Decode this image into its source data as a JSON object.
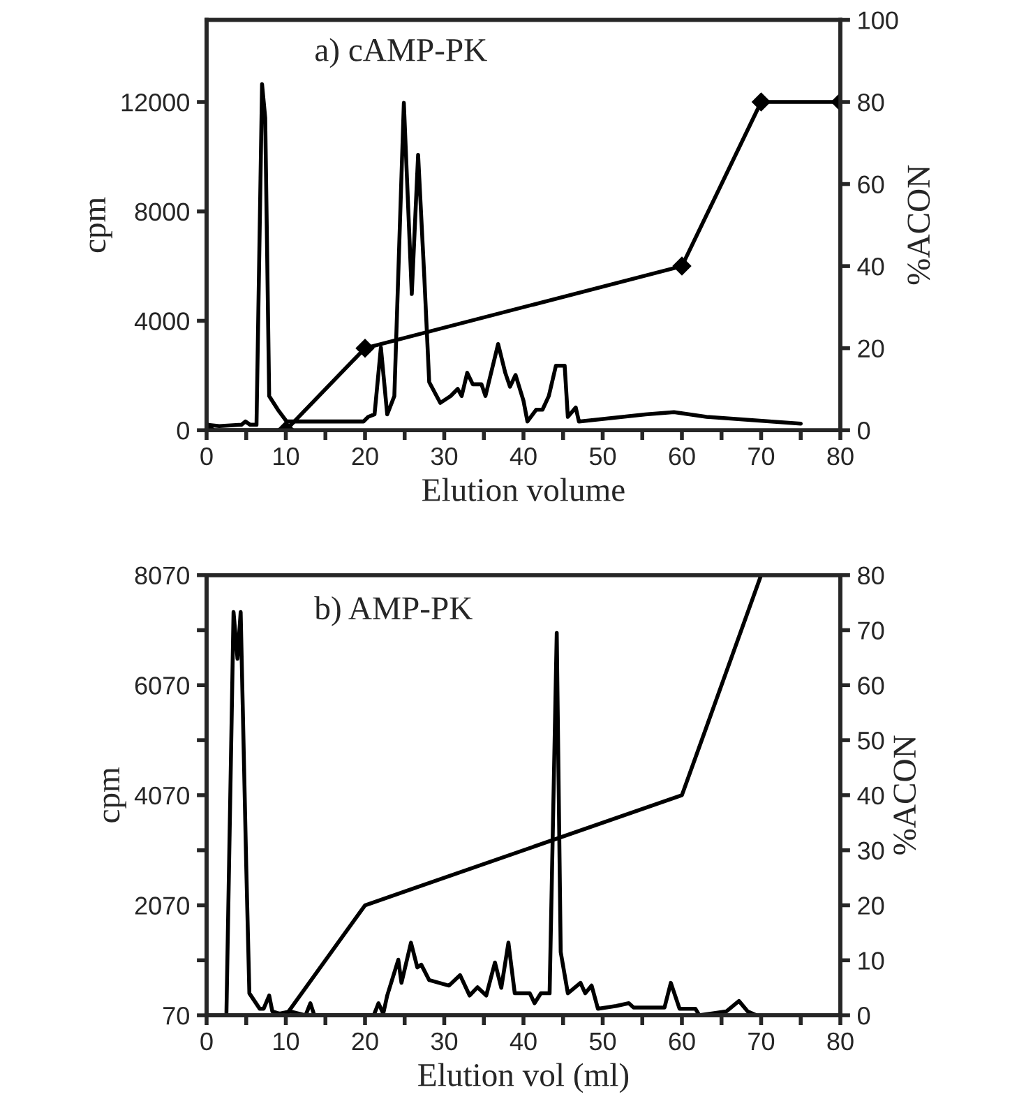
{
  "chart_data": [
    {
      "type": "line",
      "title": "a) cAMP-PK",
      "xlabel": "Elution volume",
      "ylabel": "cpm",
      "y2label": "%ACON",
      "xlim": [
        0,
        80
      ],
      "xticks": [
        0,
        {
          "value": 5,
          "label": null
        },
        10,
        {
          "value": 15,
          "label": null
        },
        20,
        {
          "value": 25,
          "label": null
        },
        30,
        {
          "value": 35,
          "label": null
        },
        40,
        {
          "value": 45,
          "label": null
        },
        50,
        {
          "value": 55,
          "label": null
        },
        60,
        {
          "value": 65,
          "label": null
        },
        70,
        {
          "value": 75,
          "label": null
        },
        80
      ],
      "ylim": [
        0,
        15000
      ],
      "yticks": [
        0,
        4000,
        8000,
        12000
      ],
      "y2lim": [
        0,
        100
      ],
      "y2ticks": [
        0,
        20,
        40,
        60,
        80,
        100
      ],
      "series": [
        {
          "color": "#000000",
          "marker": "none",
          "x": [
            0,
            1.6,
            4.4,
            4.9,
            5.5,
            6.3,
            7.0,
            7.4,
            7.9,
            9.0,
            10.1,
            11.0,
            14.8,
            19.8,
            20.4,
            21.2,
            22.0,
            22.8,
            23.7,
            24.9,
            25.9,
            26.7,
            27.5,
            28.1,
            29.5,
            30.8,
            31.7,
            32.2,
            32.9,
            33.6,
            34.7,
            35.2,
            36.8,
            37.7,
            38.3,
            39.0,
            40.0,
            40.5,
            41.6,
            42.4,
            43.2,
            44.1,
            45.2,
            45.6,
            46.6,
            47.0,
            55.4,
            59.0,
            63.1,
            75
          ],
          "values": [
            200,
            150,
            200,
            320,
            200,
            200,
            12650,
            11420,
            1250,
            750,
            320,
            320,
            320,
            320,
            490,
            580,
            3030,
            580,
            1250,
            11970,
            4980,
            10070,
            5490,
            1760,
            1000,
            1250,
            1510,
            1250,
            2100,
            1680,
            1680,
            1250,
            3150,
            2100,
            1590,
            2020,
            1080,
            320,
            750,
            750,
            1250,
            2360,
            2360,
            490,
            830,
            320,
            580,
            660,
            490,
            240
          ]
        },
        {
          "color": "#000000",
          "axis": "y2",
          "marker": "diamond",
          "x": [
            0,
            10,
            20,
            60,
            70,
            80
          ],
          "values": [
            0,
            0,
            20,
            40,
            80,
            80
          ]
        }
      ]
    },
    {
      "type": "line",
      "title": "b) AMP-PK",
      "xlabel": "Elution vol (ml)",
      "ylabel": "cpm",
      "y2label": "%ACON",
      "xlim": [
        0,
        80
      ],
      "xticks": [
        0,
        {
          "value": 5,
          "label": null
        },
        10,
        {
          "value": 15,
          "label": null
        },
        20,
        {
          "value": 25,
          "label": null
        },
        30,
        {
          "value": 35,
          "label": null
        },
        40,
        {
          "value": 45,
          "label": null
        },
        50,
        {
          "value": 55,
          "label": null
        },
        60,
        {
          "value": 65,
          "label": null
        },
        70,
        {
          "value": 75,
          "label": null
        },
        80
      ],
      "ylim": [
        70,
        8070
      ],
      "yticks": [
        70,
        {
          "value": 1070,
          "label": null
        },
        2070,
        {
          "value": 3070,
          "label": null
        },
        4070,
        {
          "value": 5070,
          "label": null
        },
        6070,
        {
          "value": 7070,
          "label": null
        },
        8070
      ],
      "y2lim": [
        0,
        80
      ],
      "y2ticks": [
        0,
        10,
        20,
        30,
        40,
        50,
        60,
        70,
        80
      ],
      "series": [
        {
          "color": "#000000",
          "marker": "none",
          "x": [
            2.5,
            3.4,
            3.9,
            4.3,
            5.0,
            5.4,
            6.7,
            7.2,
            7.9,
            8.3,
            9.2,
            10.6,
            12.5,
            13.1,
            13.6,
            21.1,
            21.7,
            22.3,
            22.8,
            24.2,
            24.6,
            25.8,
            26.6,
            27.1,
            28.1,
            30.6,
            32.0,
            33.2,
            34.2,
            35.3,
            36.4,
            37.2,
            38.1,
            38.9,
            40.8,
            41.4,
            42.2,
            43.3,
            44.2,
            44.7,
            45.6,
            47.2,
            47.8,
            48.6,
            49.4,
            51.7,
            53.3,
            53.9,
            57.8,
            58.6,
            59.7,
            61.7,
            62.2,
            65.6,
            67.2,
            68.3,
            69.4
          ],
          "values": [
            70,
            7400,
            6550,
            7400,
            2810,
            470,
            190,
            190,
            430,
            140,
            100,
            140,
            70,
            290,
            70,
            70,
            290,
            100,
            430,
            1080,
            660,
            1390,
            940,
            990,
            710,
            610,
            800,
            430,
            580,
            430,
            1030,
            570,
            1390,
            470,
            470,
            290,
            470,
            470,
            7020,
            1220,
            470,
            660,
            470,
            610,
            190,
            240,
            290,
            210,
            210,
            660,
            190,
            190,
            70,
            140,
            330,
            140,
            70
          ]
        },
        {
          "color": "#000000",
          "axis": "y2",
          "marker": "none",
          "x": [
            10,
            20,
            60,
            70
          ],
          "values": [
            0,
            20,
            40,
            80
          ]
        }
      ]
    }
  ]
}
